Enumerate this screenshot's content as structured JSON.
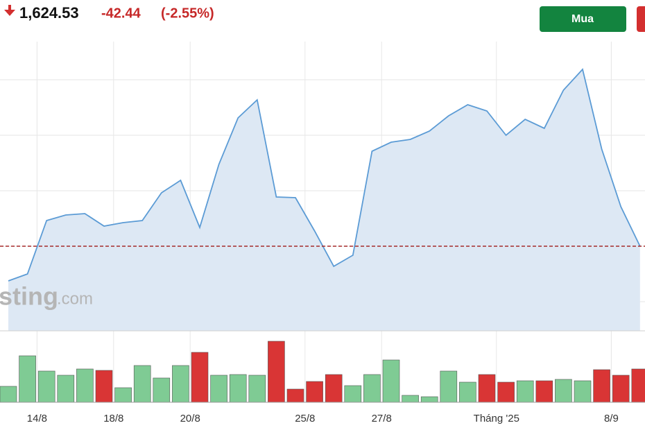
{
  "header": {
    "price": "1,624.53",
    "change": "-42.44",
    "change_pct": "(-2.55%)",
    "buy_button": "Mua"
  },
  "watermark": {
    "main": "sting",
    "suffix": ".com"
  },
  "chart_data": {
    "type": "area",
    "categories": [
      null,
      "14/8",
      null,
      null,
      null,
      "18/8",
      null,
      null,
      null,
      "20/8",
      null,
      null,
      null,
      null,
      null,
      "25/8",
      null,
      null,
      null,
      "27/8",
      null,
      null,
      null,
      null,
      null,
      "Tháng '25",
      null,
      null,
      null,
      null,
      null,
      "8/9",
      null,
      null
    ],
    "values": [
      1647,
      1651,
      1681.8,
      1685,
      1685.8,
      1678.6,
      1680.6,
      1681.8,
      1697.8,
      1705,
      1677.8,
      1714.2,
      1741,
      1751.4,
      1695.4,
      1695,
      1675.8,
      1655.4,
      1661.8,
      1721.8,
      1727,
      1728.6,
      1733.4,
      1742.2,
      1748.6,
      1745,
      1731,
      1740.2,
      1735,
      1757,
      1769,
      1723,
      1689.8,
      1667
    ],
    "color": "#5b9bd5",
    "fill": "#dde8f4",
    "ylim": [
      1618.2,
      1775
    ],
    "ygrid": [
      1763,
      1731,
      1699,
      1667,
      1635
    ],
    "reference_line": 1667,
    "reference_color": "#a52a2a",
    "volume": [
      23,
      67,
      45,
      39,
      48,
      46,
      21,
      53,
      35,
      53,
      72,
      39,
      40,
      39,
      88,
      19,
      30,
      40,
      24,
      40,
      61,
      10,
      8,
      45,
      29,
      40,
      29,
      31,
      31,
      33,
      31,
      47,
      39,
      48
    ],
    "volume_colors": [
      "#7fcb94",
      "#7fcb94",
      "#7fcb94",
      "#7fcb94",
      "#7fcb94",
      "#d93535",
      "#7fcb94",
      "#7fcb94",
      "#7fcb94",
      "#7fcb94",
      "#d93535",
      "#7fcb94",
      "#7fcb94",
      "#7fcb94",
      "#d93535",
      "#d93535",
      "#d93535",
      "#d93535",
      "#7fcb94",
      "#7fcb94",
      "#7fcb94",
      "#7fcb94",
      "#7fcb94",
      "#7fcb94",
      "#7fcb94",
      "#d93535",
      "#d93535",
      "#7fcb94",
      "#d93535",
      "#7fcb94",
      "#7fcb94",
      "#d93535",
      "#d93535",
      "#d93535"
    ],
    "volume_lim": [
      0,
      100
    ]
  }
}
